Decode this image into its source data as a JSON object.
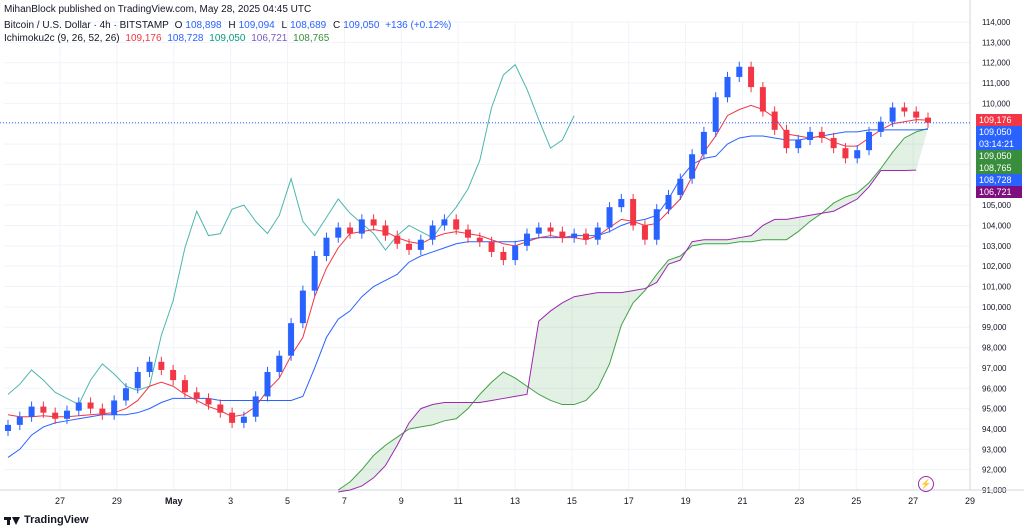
{
  "header": {
    "publisher": "MihanBlock published on TradingView.com, May 28, 2025 04:45 UTC",
    "symbol": "Bitcoin / U.S. Dollar · 4h · BITSTAMP",
    "o_label": "O",
    "o_value": "108,898",
    "h_label": "H",
    "h_value": "109,094",
    "l_label": "L",
    "l_value": "108,689",
    "c_label": "C",
    "c_value": "109,050",
    "change": "+136 (+0.12%)",
    "indicator": "Ichimoku2c (9, 26, 52, 26)",
    "ind_values": [
      "109,176",
      "108,728",
      "109,050",
      "106,721",
      "108,765"
    ],
    "ind_colors": [
      "#f23645",
      "#2962ff",
      "#089981",
      "#7e57c2",
      "#388e3c"
    ]
  },
  "footer": {
    "brand": "TradingView"
  },
  "bolt_icon": "lightning-icon",
  "colors": {
    "up": "#2962ff",
    "down": "#f23645",
    "conversion": "#f23645",
    "base": "#2962ff",
    "lagging": "#4db6ac",
    "span_a": "#43a047",
    "span_b": "#9c27b0",
    "cloud": "rgba(67,160,71,0.15)"
  },
  "price_labels": [
    {
      "text": "109,176",
      "price": 109176,
      "color": "#f23645"
    },
    {
      "text": "109,050",
      "price": 109050,
      "color": "#2962ff"
    },
    {
      "text": "03:14:21",
      "price": 108750,
      "color": "#2962ff"
    },
    {
      "text": "109,050",
      "price": 109050,
      "color": "#388e3c"
    },
    {
      "text": "108,765",
      "price": 108765,
      "color": "#388e3c"
    },
    {
      "text": "108,728",
      "price": 108728,
      "color": "#2962ff"
    },
    {
      "text": "106,721",
      "price": 106721,
      "color": "#7e0f7e"
    }
  ],
  "chart_data": {
    "type": "line",
    "title": "Bitcoin / U.S. Dollar · 4h · BITSTAMP",
    "y_ticks": [
      "91,000",
      "92,000",
      "93,000",
      "94,000",
      "95,000",
      "96,000",
      "97,000",
      "98,000",
      "99,000",
      "100,000",
      "101,000",
      "102,000",
      "103,000",
      "104,000",
      "105,000",
      "106,000",
      "107,000",
      "108,000",
      "109,000",
      "110,000",
      "111,000",
      "112,000",
      "113,000",
      "114,000"
    ],
    "ylim": [
      91000,
      114000
    ],
    "x_ticks": [
      "27",
      "29",
      "May",
      "3",
      "5",
      "7",
      "9",
      "11",
      "13",
      "15",
      "17",
      "19",
      "21",
      "23",
      "25",
      "27",
      "29"
    ],
    "current_price": 109050,
    "series": [
      {
        "name": "Price (close)",
        "values": [
          94200,
          94600,
          95100,
          94800,
          94500,
          94900,
          95300,
          95000,
          94700,
          95400,
          96000,
          96800,
          97300,
          96900,
          96400,
          95800,
          95500,
          95200,
          94800,
          94300,
          94600,
          95600,
          96800,
          97600,
          99200,
          100800,
          102500,
          103400,
          103900,
          103600,
          104300,
          104000,
          103500,
          103100,
          102800,
          103300,
          104000,
          104300,
          103800,
          103400,
          103200,
          102700,
          102300,
          103000,
          103600,
          103900,
          103700,
          103400,
          103600,
          103300,
          103900,
          104900,
          105300,
          104000,
          103300,
          104800,
          105500,
          106300,
          107500,
          108600,
          110300,
          111300,
          111800,
          110800,
          109600,
          108700,
          107800,
          108200,
          108600,
          108300,
          107800,
          107300,
          107700,
          108600,
          109100,
          109800,
          109600,
          109300,
          109050
        ]
      },
      {
        "name": "Conversion Line",
        "values": [
          94700,
          94600,
          94600,
          94650,
          94600,
          94600,
          94650,
          94700,
          94750,
          94800,
          95000,
          95400,
          96100,
          96300,
          96100,
          95700,
          95400,
          95100,
          94900,
          94600,
          94700,
          95100,
          95900,
          96500,
          97600,
          98500,
          100500,
          101900,
          102900,
          103600,
          103700,
          103800,
          103700,
          103400,
          103200,
          103100,
          103400,
          103600,
          103700,
          103600,
          103500,
          103300,
          103100,
          103000,
          103200,
          103400,
          103500,
          103400,
          103400,
          103300,
          103500,
          103900,
          104300,
          104200,
          104000,
          104100,
          104700,
          105300,
          106400,
          107600,
          108400,
          109400,
          109700,
          109900,
          109700,
          109300,
          108500,
          108400,
          108300,
          108400,
          108100,
          107900,
          107900,
          108300,
          108700,
          109000,
          109100,
          109200,
          109176
        ]
      },
      {
        "name": "Base Line",
        "values": [
          92600,
          93000,
          93700,
          94100,
          94300,
          94400,
          94500,
          94600,
          94700,
          94700,
          94700,
          94800,
          95000,
          95300,
          95500,
          95500,
          95500,
          95500,
          95400,
          95400,
          95400,
          95400,
          95400,
          95400,
          95400,
          95600,
          97000,
          98500,
          99400,
          99800,
          100500,
          101000,
          101300,
          101600,
          102200,
          102500,
          102700,
          102900,
          103100,
          103200,
          103200,
          103200,
          103200,
          103200,
          103300,
          103400,
          103400,
          103400,
          103500,
          103500,
          103500,
          103700,
          104000,
          104200,
          104300,
          104500,
          105300,
          106300,
          107000,
          107300,
          107400,
          108000,
          108300,
          108400,
          108400,
          108300,
          108200,
          108200,
          108300,
          108400,
          108500,
          108600,
          108600,
          108700,
          108700,
          108700,
          108700,
          108700,
          108728
        ]
      },
      {
        "name": "Lagging Span",
        "values": [
          95700,
          96200,
          96900,
          96400,
          95800,
          95500,
          95200,
          96400,
          97200,
          96700,
          96100,
          95900,
          96100,
          98600,
          100300,
          102900,
          104700,
          103500,
          103600,
          104800,
          105000,
          104200,
          103600,
          104500,
          106300,
          104200,
          103500,
          104400,
          105300,
          104600,
          104100,
          103600,
          102800,
          103500,
          104000,
          103700,
          103400,
          104200,
          104900,
          105800,
          107200,
          109800,
          111400,
          111900,
          110700,
          109200,
          107800,
          108200,
          109400
        ]
      },
      {
        "name": "Leading Span A",
        "values": [
          91000,
          91400,
          92000,
          92700,
          93200,
          93600,
          94000,
          94100,
          94200,
          94400,
          94500,
          95000,
          95700,
          96300,
          96800,
          96500,
          96100,
          95700,
          95400,
          95200,
          95200,
          95400,
          96000,
          97200,
          99100,
          100200,
          100800,
          101600,
          102300,
          102500,
          103000,
          103100,
          103100,
          103100,
          103200,
          103200,
          103300,
          103300,
          103300,
          103700,
          104200,
          104600,
          105100,
          105400,
          105600,
          106100,
          106800,
          107600,
          108300,
          108600,
          108765
        ]
      },
      {
        "name": "Leading Span B",
        "values": [
          90900,
          91000,
          91200,
          91600,
          92200,
          93200,
          94300,
          95000,
          95200,
          95300,
          95300,
          95300,
          95300,
          95400,
          95500,
          95600,
          95700,
          99300,
          99800,
          100200,
          100500,
          100600,
          100700,
          100700,
          100700,
          100800,
          100900,
          101200,
          102100,
          102300,
          103200,
          103300,
          103300,
          103300,
          103400,
          103500,
          104000,
          104300,
          104300,
          104400,
          104500,
          104600,
          104700,
          105000,
          105300,
          105900,
          106700,
          106700,
          106700,
          106721
        ]
      }
    ]
  }
}
